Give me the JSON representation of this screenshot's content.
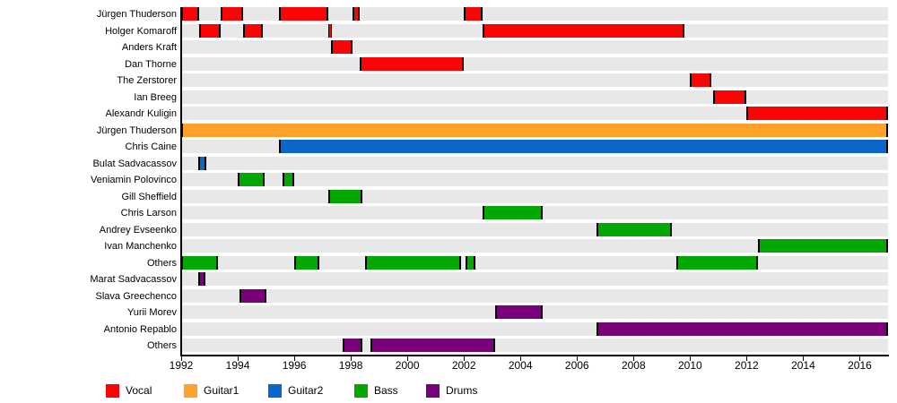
{
  "chart_data": {
    "type": "bar",
    "subtype": "membership-timeline-gantt",
    "title": "",
    "xlabel": "",
    "ylabel": "",
    "x_axis": {
      "min": 1992,
      "max": 2017,
      "tick_step": 2,
      "ticks": [
        1992,
        1994,
        1996,
        1998,
        2000,
        2002,
        2004,
        2006,
        2008,
        2010,
        2012,
        2014,
        2016
      ]
    },
    "grid": false,
    "legend_position": "bottom",
    "legend": [
      {
        "label": "Vocal",
        "color": "#fa0505"
      },
      {
        "label": "Guitar1",
        "color": "#ffa128"
      },
      {
        "label": "Guitar2",
        "color": "#0b66cc"
      },
      {
        "label": "Bass",
        "color": "#00a800"
      },
      {
        "label": "Drums",
        "color": "#780078"
      }
    ],
    "row_background_color": "#e8e8e8",
    "rows": [
      {
        "label": "Jürgen Thuderson",
        "instrument": "Vocal",
        "segments": [
          [
            1992.0,
            1992.65
          ],
          [
            1993.4,
            1994.2
          ],
          [
            1995.45,
            1997.2
          ],
          [
            1998.05,
            1998.3
          ],
          [
            2002.0,
            2002.65
          ]
        ]
      },
      {
        "label": "Holger Komaroff",
        "instrument": "Vocal",
        "segments": [
          [
            1992.65,
            1993.4
          ],
          [
            1994.2,
            1994.9
          ],
          [
            1997.2,
            1997.32
          ],
          [
            2002.65,
            2009.8
          ]
        ]
      },
      {
        "label": "Anders Kraft",
        "instrument": "Vocal",
        "segments": [
          [
            1997.3,
            1998.05
          ]
        ]
      },
      {
        "label": "Dan Thorne",
        "instrument": "Vocal",
        "segments": [
          [
            1998.3,
            2002.0
          ]
        ]
      },
      {
        "label": "The Zerstorer",
        "instrument": "Vocal",
        "segments": [
          [
            2010.0,
            2010.75
          ]
        ]
      },
      {
        "label": "Ian Breeg",
        "instrument": "Vocal",
        "segments": [
          [
            2010.8,
            2012.0
          ]
        ]
      },
      {
        "label": "Alexandr Kuligin",
        "instrument": "Vocal",
        "segments": [
          [
            2012.0,
            2017.0
          ]
        ]
      },
      {
        "label": "Jürgen Thuderson",
        "instrument": "Guitar1",
        "segments": [
          [
            1992.0,
            2017.0
          ]
        ]
      },
      {
        "label": "Chris Caine",
        "instrument": "Guitar2",
        "segments": [
          [
            1995.45,
            2017.0
          ]
        ]
      },
      {
        "label": "Bulat Sadvacassov",
        "instrument": "Guitar2",
        "segments": [
          [
            1992.6,
            1992.9
          ]
        ]
      },
      {
        "label": "Veniamin Polovinco",
        "instrument": "Bass",
        "segments": [
          [
            1994.0,
            1994.95
          ],
          [
            1995.6,
            1996.0
          ]
        ]
      },
      {
        "label": "Gill Sheffield",
        "instrument": "Bass",
        "segments": [
          [
            1997.2,
            1998.4
          ]
        ]
      },
      {
        "label": "Chris Larson",
        "instrument": "Bass",
        "segments": [
          [
            2002.65,
            2004.8
          ]
        ]
      },
      {
        "label": "Andrey Evseenko",
        "instrument": "Bass",
        "segments": [
          [
            2006.7,
            2009.35
          ]
        ]
      },
      {
        "label": "Ivan Manchenko",
        "instrument": "Bass",
        "segments": [
          [
            2012.4,
            2017.0
          ]
        ]
      },
      {
        "label": "Others",
        "instrument": "Bass",
        "segments": [
          [
            1992.0,
            1993.3
          ],
          [
            1996.0,
            1996.9
          ],
          [
            1998.5,
            2001.9
          ],
          [
            2002.05,
            2002.4
          ],
          [
            2009.5,
            2012.4
          ]
        ]
      },
      {
        "label": "Marat Sadvacassov",
        "instrument": "Drums",
        "segments": [
          [
            1992.6,
            1992.85
          ]
        ]
      },
      {
        "label": "Slava Greechenco",
        "instrument": "Drums",
        "segments": [
          [
            1994.05,
            1995.0
          ]
        ]
      },
      {
        "label": "Yurii Morev",
        "instrument": "Drums",
        "segments": [
          [
            2003.1,
            2004.8
          ]
        ]
      },
      {
        "label": "Antonio Repablo",
        "instrument": "Drums",
        "segments": [
          [
            2006.7,
            2017.0
          ]
        ]
      },
      {
        "label": "Others",
        "instrument": "Drums",
        "segments": [
          [
            1997.7,
            1998.4
          ],
          [
            1998.7,
            2003.1
          ]
        ]
      }
    ]
  }
}
